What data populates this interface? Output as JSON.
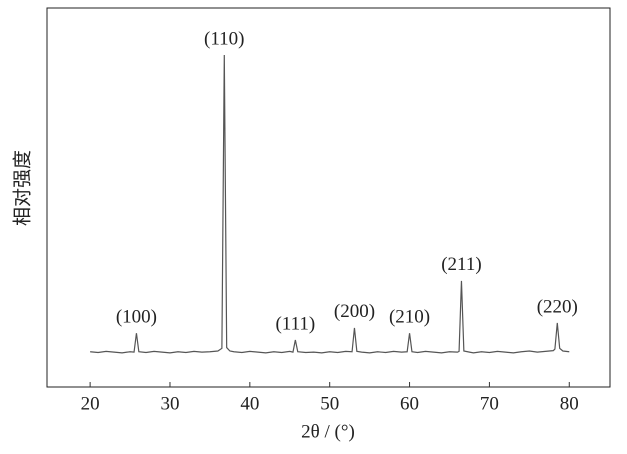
{
  "chart_data": {
    "type": "line",
    "x_label": "2θ / (°)",
    "y_label": "相对强度",
    "x": [
      20,
      21,
      22,
      23,
      24,
      25,
      25.5,
      25.8,
      26.1,
      27,
      28,
      29,
      30,
      31,
      32,
      33,
      34,
      35,
      36,
      36.5,
      36.8,
      37.1,
      37.5,
      38,
      39,
      40,
      41,
      42,
      43,
      44,
      45,
      45.4,
      45.7,
      46,
      47,
      48,
      49,
      50,
      51,
      52,
      52.8,
      53.1,
      53.4,
      54,
      55,
      56,
      57,
      58,
      59,
      59.7,
      60,
      60.3,
      61,
      62,
      63,
      64,
      65,
      66,
      66.2,
      66.5,
      66.8,
      67.5,
      68,
      69,
      70,
      71,
      72,
      73,
      74,
      75,
      76,
      77,
      78,
      78.2,
      78.5,
      78.8,
      79.2,
      80
    ],
    "values": [
      9.3,
      9.1,
      9.4,
      9.2,
      9.0,
      9.3,
      9.2,
      14.2,
      9.3,
      9.1,
      9.4,
      9.2,
      9.0,
      9.3,
      9.1,
      9.4,
      9.2,
      9.3,
      9.5,
      10.2,
      87.6,
      10.4,
      9.5,
      9.3,
      9.1,
      9.4,
      9.2,
      9.0,
      9.3,
      9.1,
      9.4,
      9.2,
      12.4,
      9.3,
      9.1,
      9.2,
      9.0,
      9.3,
      9.1,
      9.4,
      9.3,
      15.6,
      9.4,
      9.2,
      9.0,
      9.3,
      9.1,
      9.4,
      9.2,
      9.3,
      14.2,
      9.3,
      9.1,
      9.4,
      9.2,
      9.0,
      9.3,
      9.2,
      9.4,
      28,
      9.5,
      9.2,
      9.0,
      9.3,
      9.1,
      9.4,
      9.2,
      9.0,
      9.3,
      9.5,
      9.2,
      9.4,
      9.6,
      10.0,
      16.9,
      10.2,
      9.5,
      9.3
    ],
    "color": "#555555",
    "xlim": [
      14.6,
      85.1
    ],
    "xticks": [
      20,
      30,
      40,
      50,
      60,
      70,
      80
    ],
    "ylim": [
      0,
      100
    ],
    "annotations": [
      {
        "label": "(100)",
        "x": 25.8,
        "y": 14.2
      },
      {
        "label": "(110)",
        "x": 36.8,
        "y": 87.6
      },
      {
        "label": "(111)",
        "x": 45.7,
        "y": 12.4
      },
      {
        "label": "(200)",
        "x": 53.1,
        "y": 15.6
      },
      {
        "label": "(210)",
        "x": 60.0,
        "y": 14.2
      },
      {
        "label": "(211)",
        "x": 66.5,
        "y": 28
      },
      {
        "label": "(220)",
        "x": 78.5,
        "y": 16.9
      }
    ]
  }
}
